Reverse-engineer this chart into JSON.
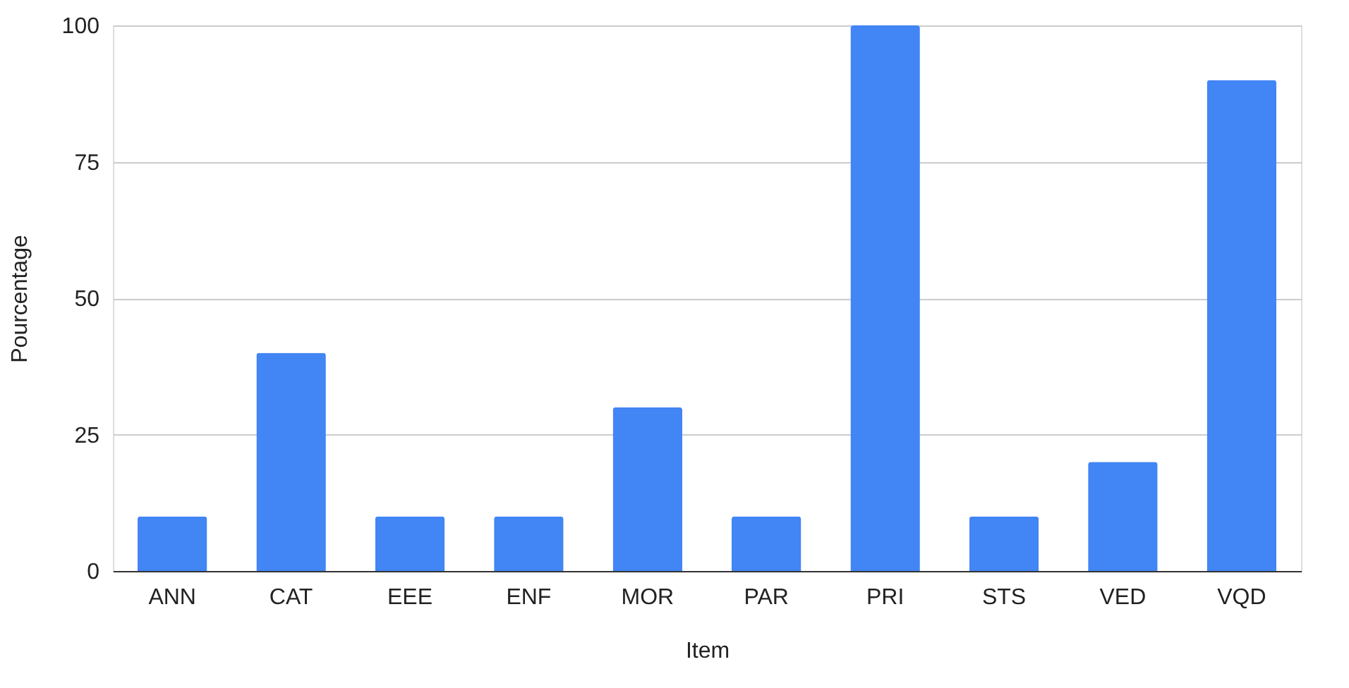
{
  "chart_data": {
    "type": "bar",
    "xlabel": "Item",
    "ylabel": "Pourcentage",
    "categories": [
      "ANN",
      "CAT",
      "EEE",
      "ENF",
      "MOR",
      "PAR",
      "PRI",
      "STS",
      "VED",
      "VQD"
    ],
    "values": [
      10,
      40,
      10,
      10,
      30,
      10,
      100,
      10,
      20,
      90
    ],
    "color": "#4285f4",
    "ylim": [
      0,
      100
    ],
    "yticks": [
      0,
      25,
      50,
      75,
      100
    ],
    "grid": "y"
  }
}
